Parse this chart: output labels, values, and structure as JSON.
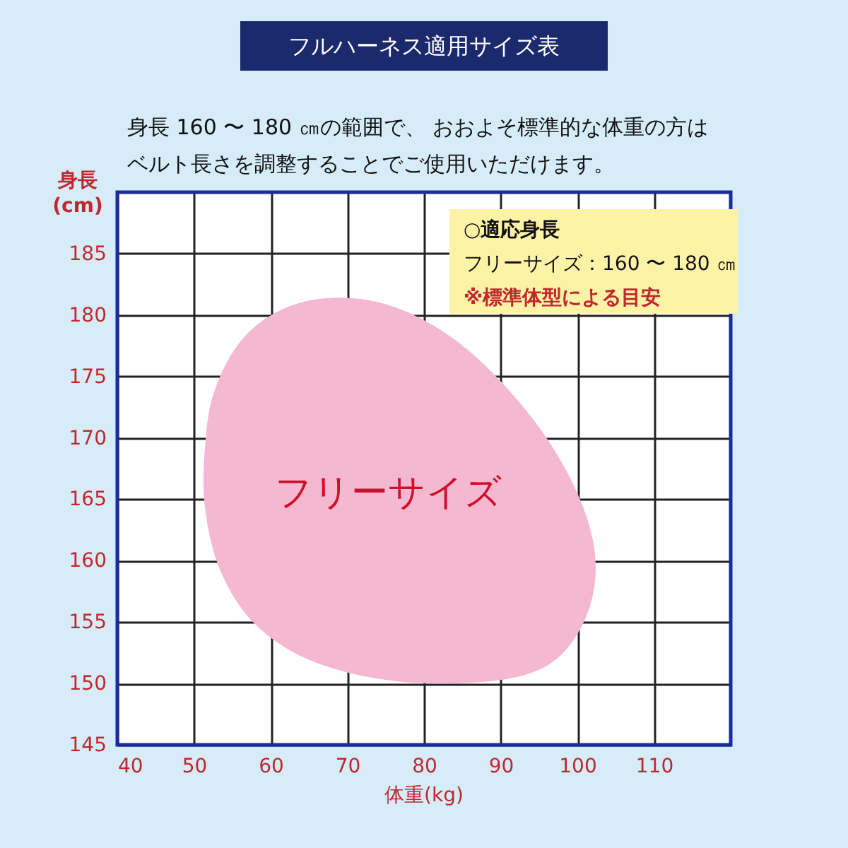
{
  "chart_data": {
    "type": "area",
    "title": "フルハーネス適用サイズ表",
    "subtitle": [
      "身長 160 〜 180 ㎝の範囲で、 おおよそ標準的な体重の方は",
      "ベルト長さを調整することでご使用いただけます。"
    ],
    "xlabel": "体重(kg)",
    "ylabel": "身長\n(cm)",
    "series": [
      {
        "name": "フリーサイズ",
        "color": "#f4b8d0",
        "x": [
          68.9,
          76.3,
          83.7,
          90.5,
          96.7,
          101.0,
          102.2,
          100.4,
          96.1,
          88.6,
          76.3,
          65.2,
          57.8,
          53.5,
          51.6,
          51.6,
          52.8,
          56.5,
          62.1
        ],
        "values": [
          181.3,
          180.5,
          178.0,
          174.1,
          169.1,
          163.6,
          159.0,
          154.7,
          151.6,
          150.3,
          150.3,
          152.0,
          155.1,
          159.4,
          164.4,
          169.1,
          173.7,
          178.0,
          180.5
        ]
      }
    ],
    "annotations": [
      "○適応身長",
      "　フリーサイズ：160 〜 180 ㎝",
      "※標準体型による目安"
    ],
    "xlim": [
      40,
      120
    ],
    "xticks": [
      40,
      50,
      60,
      70,
      80,
      90,
      100,
      110
    ],
    "ylim": [
      145,
      190
    ],
    "yticks": [
      145,
      150,
      155,
      160,
      165,
      170,
      175,
      180,
      185
    ],
    "grid": true
  }
}
